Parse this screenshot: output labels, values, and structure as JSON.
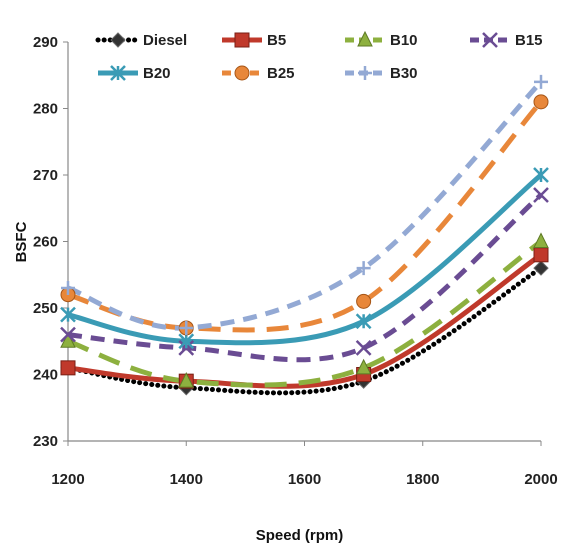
{
  "chart_data": {
    "type": "line",
    "title": "",
    "xlabel": "Speed (rpm)",
    "ylabel": "BSFC",
    "x": [
      1200,
      1400,
      1700,
      2000
    ],
    "xlim": [
      1200,
      2000
    ],
    "ylim": [
      230,
      290
    ],
    "x_ticks": [
      "1200",
      "1400",
      "1600",
      "1800",
      "2000"
    ],
    "y_ticks": [
      "230",
      "240",
      "250",
      "260",
      "270",
      "280",
      "290"
    ],
    "grid": false,
    "legend_position": "top",
    "series": [
      {
        "name": "Diesel",
        "values": [
          241,
          238,
          239,
          256
        ],
        "color": "#000000",
        "dash": "dotted",
        "marker": "diamond"
      },
      {
        "name": "B5",
        "values": [
          241,
          239,
          240,
          258
        ],
        "color": "#c0392b",
        "dash": "solid",
        "marker": "square"
      },
      {
        "name": "B10",
        "values": [
          245,
          239,
          241,
          260
        ],
        "color": "#8db03f",
        "dash": "long-dash",
        "marker": "triangle"
      },
      {
        "name": "B15",
        "values": [
          246,
          244,
          244,
          267
        ],
        "color": "#6a4c93",
        "dash": "dash",
        "marker": "x"
      },
      {
        "name": "B20",
        "values": [
          249,
          245,
          248,
          270
        ],
        "color": "#3a9bb5",
        "dash": "solid",
        "marker": "star"
      },
      {
        "name": "B25",
        "values": [
          252,
          247,
          251,
          281
        ],
        "color": "#e8873a",
        "dash": "long-dash",
        "marker": "circle"
      },
      {
        "name": "B30",
        "values": [
          253,
          247,
          256,
          284
        ],
        "color": "#93a9d4",
        "dash": "dash",
        "marker": "plus"
      }
    ]
  }
}
